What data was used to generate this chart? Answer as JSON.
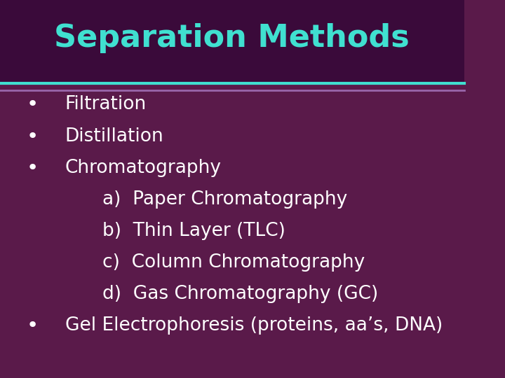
{
  "title": "Separation Methods",
  "title_color": "#40E0D0",
  "title_fontsize": 32,
  "background_color": "#5a1a4a",
  "header_bg_color": "#3a0a3a",
  "divider_color": "#40E0D0",
  "divider_color2": "#9966aa",
  "bullet_color": "#ffffff",
  "bullet_items": [
    {
      "level": 0,
      "text": "Filtration"
    },
    {
      "level": 0,
      "text": "Distillation"
    },
    {
      "level": 0,
      "text": "Chromatography"
    },
    {
      "level": 1,
      "text": "a)  Paper Chromatography"
    },
    {
      "level": 1,
      "text": "b)  Thin Layer (TLC)"
    },
    {
      "level": 1,
      "text": "c)  Column Chromatography"
    },
    {
      "level": 1,
      "text": "d)  Gas Chromatography (GC)"
    },
    {
      "level": 0,
      "text": "Gel Electrophoresis (proteins, aa’s, DNA)"
    }
  ],
  "text_fontsize": 19,
  "sub_fontsize": 19
}
